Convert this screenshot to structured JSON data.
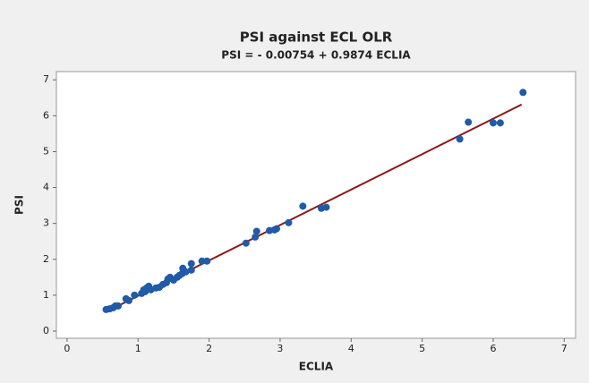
{
  "chart_data": {
    "type": "scatter",
    "title": "PSI against ECL OLR",
    "subtitle": "PSI = - 0.00754 + 0.9874 ECLIA",
    "x_label": "ECLIA",
    "y_label": "PSI",
    "xlim": [
      -0.15,
      7.16
    ],
    "ylim": [
      -0.2,
      7.23
    ],
    "xticks": [
      0,
      1,
      2,
      3,
      4,
      5,
      6,
      7
    ],
    "yticks": [
      0,
      1,
      2,
      3,
      4,
      5,
      6,
      7
    ],
    "points": {
      "color": "#1f5ba8",
      "x": [
        0.55,
        0.6,
        0.65,
        0.68,
        0.72,
        0.83,
        0.87,
        0.95,
        1.05,
        1.08,
        1.1,
        1.12,
        1.15,
        1.18,
        1.25,
        1.3,
        1.35,
        1.4,
        1.42,
        1.45,
        1.5,
        1.55,
        1.58,
        1.62,
        1.63,
        1.67,
        1.75,
        1.75,
        1.9,
        1.97,
        2.52,
        2.65,
        2.67,
        2.85,
        2.92,
        2.95,
        3.12,
        3.32,
        3.58,
        3.65,
        5.53,
        5.65,
        6.0,
        6.1,
        6.42
      ],
      "y": [
        0.6,
        0.62,
        0.65,
        0.7,
        0.7,
        0.9,
        0.85,
        1.0,
        1.05,
        1.15,
        1.1,
        1.2,
        1.25,
        1.15,
        1.2,
        1.22,
        1.3,
        1.35,
        1.45,
        1.5,
        1.42,
        1.5,
        1.55,
        1.6,
        1.75,
        1.65,
        1.7,
        1.88,
        1.95,
        1.95,
        2.45,
        2.62,
        2.78,
        2.8,
        2.82,
        2.85,
        3.02,
        3.48,
        3.42,
        3.45,
        5.35,
        5.82,
        5.8,
        5.8,
        6.65
      ]
    },
    "fit_line": {
      "color": "#8b1a1a",
      "x": [
        0.55,
        6.4
      ],
      "values": [
        0.535,
        6.312
      ]
    }
  }
}
